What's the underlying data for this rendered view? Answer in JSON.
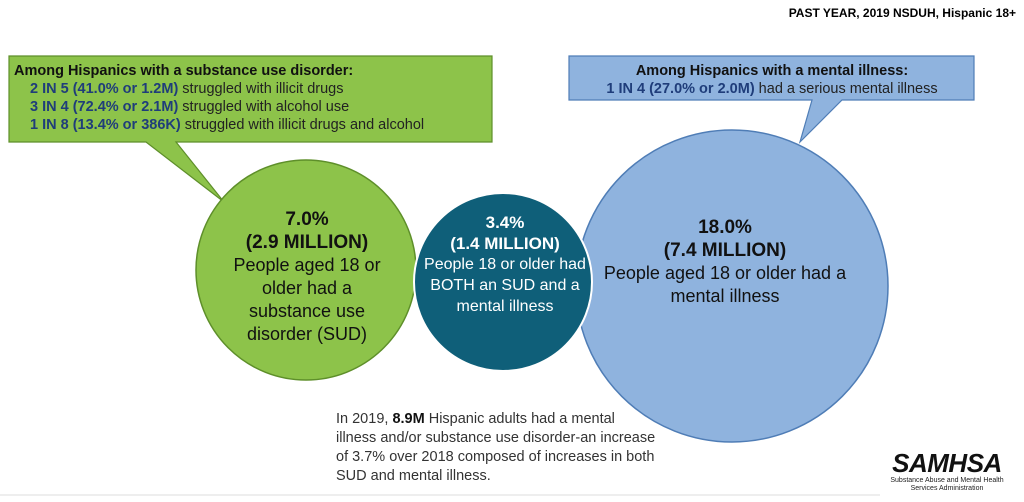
{
  "header": {
    "label": "PAST YEAR, 2019 NSDUH, Hispanic 18+"
  },
  "sud_callout": {
    "title": "Among Hispanics with a substance use disorder:",
    "rows": [
      {
        "stat": "2 IN 5 (41.0% or 1.2M)",
        "text": " struggled with illicit drugs"
      },
      {
        "stat": "3 IN 4 (72.4% or 2.1M)",
        "text": " struggled with alcohol use"
      },
      {
        "stat": "1 IN 8 (13.4% or 386K)",
        "text": " struggled with illicit drugs and alcohol"
      }
    ]
  },
  "mi_callout": {
    "title": "Among Hispanics with a mental illness:",
    "stat": "1 IN 4 (27.0% or 2.0M)",
    "text": " had a serious mental illness"
  },
  "circles": {
    "sud": {
      "pct": "7.0%",
      "num": "(2.9 MILLION)",
      "desc": "People aged 18 or older had a substance use disorder (SUD)",
      "color": "#8dc34a"
    },
    "both": {
      "pct": "3.4%",
      "num": "(1.4 MILLION)",
      "desc": "People 18 or older had BOTH an SUD and a mental illness",
      "color": "#0f5f79"
    },
    "mi": {
      "pct": "18.0%",
      "num": "(7.4 MILLION)",
      "desc": "People aged 18 or older had a mental illness",
      "color": "#8fb3de"
    }
  },
  "footnote": {
    "pre": "In 2019, ",
    "bold": "8.9M",
    "post": " Hispanic adults had a mental illness and/or substance use disorder-an increase of 3.7% over 2018 composed of increases in both SUD and mental illness."
  },
  "logo": {
    "wordmark": "SAMHSA",
    "subtitle": "Substance Abuse and Mental Health Services Administration"
  }
}
